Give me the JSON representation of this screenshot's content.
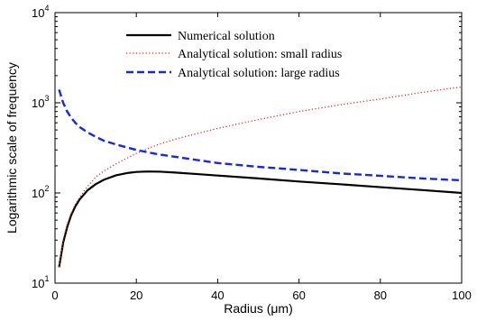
{
  "chart_data": {
    "type": "line",
    "title": "",
    "xlabel": "Radius (μm)",
    "ylabel": "Logarithmic scale of frequency",
    "xlim": [
      0,
      100
    ],
    "ylim": [
      10,
      10000
    ],
    "y_scale": "log",
    "grid": false,
    "legend_position": "top-center",
    "x_ticks": [
      "0",
      "20",
      "40",
      "60",
      "80",
      "100"
    ],
    "y_ticks": [
      {
        "base": "10",
        "exp": "1"
      },
      {
        "base": "10",
        "exp": "2"
      },
      {
        "base": "10",
        "exp": "3"
      },
      {
        "base": "10",
        "exp": "4"
      }
    ],
    "series": [
      {
        "name": "Numerical solution",
        "color": "#000000",
        "style": "solid",
        "x": [
          1,
          2,
          3,
          4,
          5,
          6,
          8,
          10,
          12,
          15,
          18,
          20,
          23,
          26,
          30,
          35,
          40,
          50,
          60,
          70,
          80,
          90,
          100
        ],
        "y": [
          15,
          28,
          42,
          57,
          71,
          84,
          107,
          125,
          140,
          157,
          167,
          171,
          173,
          172,
          168,
          162,
          156,
          145,
          134,
          125,
          116,
          108,
          100
        ]
      },
      {
        "name": "Analytical solution: small radius",
        "color": "#e8281e",
        "style": "dotted",
        "x": [
          1,
          2,
          3,
          4,
          5,
          6,
          8,
          10,
          12,
          15,
          20,
          25,
          30,
          40,
          50,
          60,
          70,
          80,
          90,
          100
        ],
        "y": [
          15,
          30,
          45,
          60,
          75,
          89,
          118,
          150,
          175,
          210,
          275,
          340,
          400,
          520,
          650,
          800,
          950,
          1100,
          1300,
          1500
        ]
      },
      {
        "name": "Analytical solution: large radius",
        "color": "#1428e6",
        "style": "dashed",
        "x": [
          1,
          2,
          3,
          4,
          5,
          6,
          8,
          10,
          12,
          15,
          20,
          25,
          30,
          40,
          50,
          60,
          70,
          80,
          90,
          100
        ],
        "y": [
          1400,
          1000,
          800,
          680,
          600,
          540,
          470,
          420,
          380,
          345,
          300,
          270,
          250,
          215,
          195,
          180,
          165,
          155,
          145,
          138
        ]
      }
    ]
  }
}
